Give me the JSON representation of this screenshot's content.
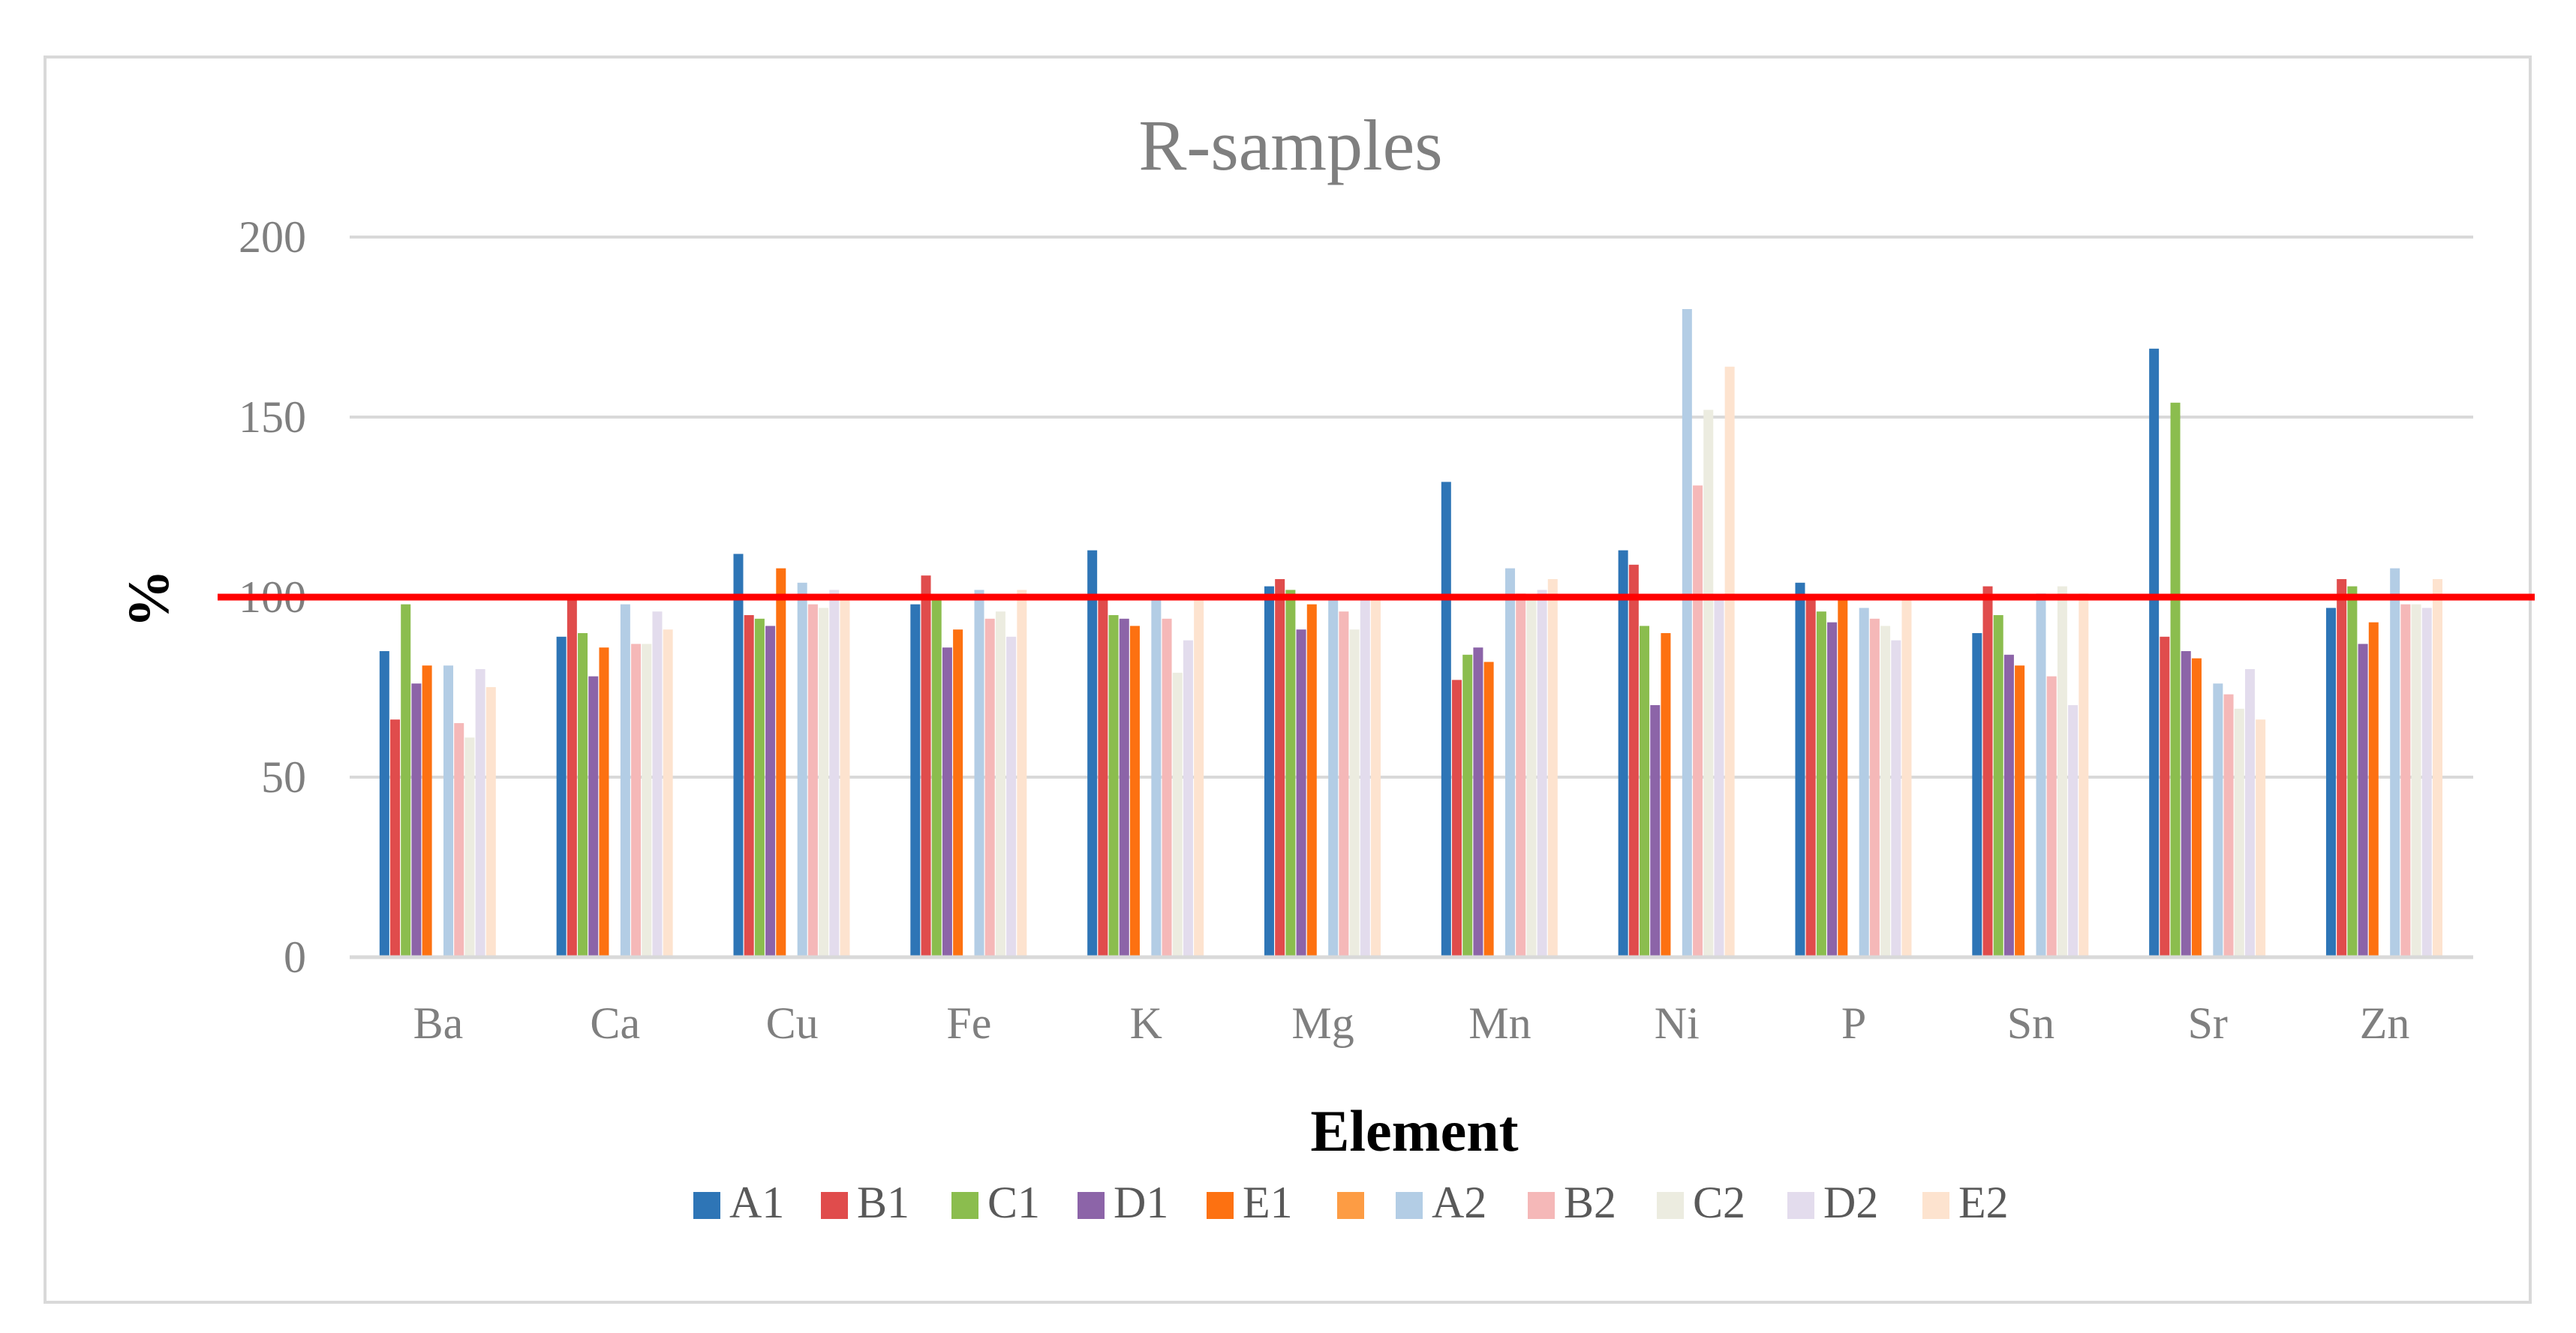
{
  "chart_data": {
    "type": "bar",
    "title": "R-samples",
    "xlabel": "Element",
    "ylabel": "%",
    "ylim": [
      0,
      200
    ],
    "yticks": [
      0,
      50,
      100,
      150,
      200
    ],
    "grid": true,
    "legend_position": "bottom",
    "reference_line": {
      "value": 100,
      "color": "#ff0000"
    },
    "categories": [
      "Ba",
      "Ca",
      "Cu",
      "Fe",
      "K",
      "Mg",
      "Mn",
      "Ni",
      "P",
      "Sn",
      "Sr",
      "Zn"
    ],
    "series": [
      {
        "name": "A1",
        "color": "#2e75b6",
        "values": [
          85,
          89,
          112,
          98,
          113,
          103,
          132,
          113,
          104,
          90,
          169,
          97
        ]
      },
      {
        "name": "B1",
        "color": "#e04c4c",
        "values": [
          66,
          100,
          95,
          106,
          100,
          105,
          77,
          109,
          100,
          103,
          89,
          105
        ]
      },
      {
        "name": "C1",
        "color": "#8bbd4e",
        "values": [
          98,
          90,
          94,
          100,
          95,
          102,
          84,
          92,
          96,
          95,
          154,
          103
        ]
      },
      {
        "name": "D1",
        "color": "#8c64a8",
        "values": [
          76,
          78,
          92,
          86,
          94,
          91,
          86,
          70,
          93,
          84,
          85,
          87
        ]
      },
      {
        "name": "E1",
        "color": "#fd7111",
        "values": [
          81,
          86,
          108,
          91,
          92,
          98,
          82,
          90,
          100,
          81,
          83,
          93
        ]
      },
      {
        "name": "",
        "color": "#fd9c44",
        "values": [
          0,
          0,
          0,
          0,
          0,
          0,
          0,
          0,
          0,
          0,
          0,
          0
        ]
      },
      {
        "name": "A2",
        "color": "#b3cde5",
        "values": [
          81,
          98,
          104,
          102,
          100,
          100,
          108,
          180,
          97,
          101,
          76,
          108
        ]
      },
      {
        "name": "B2",
        "color": "#f5b8b8",
        "values": [
          65,
          87,
          98,
          94,
          94,
          96,
          101,
          131,
          94,
          78,
          73,
          98
        ]
      },
      {
        "name": "C2",
        "color": "#ecece0",
        "values": [
          61,
          87,
          97,
          96,
          79,
          91,
          100,
          152,
          92,
          103,
          69,
          98
        ]
      },
      {
        "name": "D2",
        "color": "#e3dced",
        "values": [
          80,
          96,
          102,
          89,
          88,
          100,
          102,
          100,
          88,
          70,
          80,
          97
        ]
      },
      {
        "name": "E2",
        "color": "#fde3cf",
        "values": [
          75,
          91,
          101,
          102,
          100,
          100,
          105,
          164,
          100,
          101,
          66,
          105
        ]
      }
    ]
  }
}
